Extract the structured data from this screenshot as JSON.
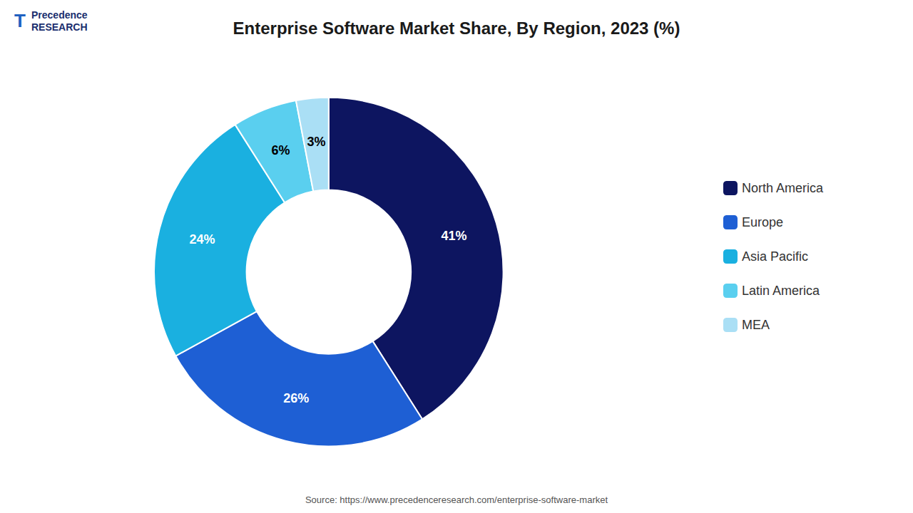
{
  "chart_data": {
    "type": "pie",
    "title": "Enterprise Software Market Share, By Region, 2023 (%)",
    "categories": [
      "North America",
      "Europe",
      "Asia Pacific",
      "Latin America",
      "MEA"
    ],
    "values": [
      41,
      26,
      24,
      6,
      3
    ],
    "value_labels": [
      "41%",
      "26%",
      "24%",
      "6%",
      "3%"
    ],
    "colors": [
      "#0d1560",
      "#1e5fd4",
      "#1ab0e0",
      "#5acfef",
      "#aadff5"
    ],
    "data_labels": true,
    "legend": "right",
    "annotations": [
      "T",
      "Precedence",
      "RESEARCH",
      "Source: https://www.precedenceresearch.com/enterprise-software-market"
    ]
  }
}
